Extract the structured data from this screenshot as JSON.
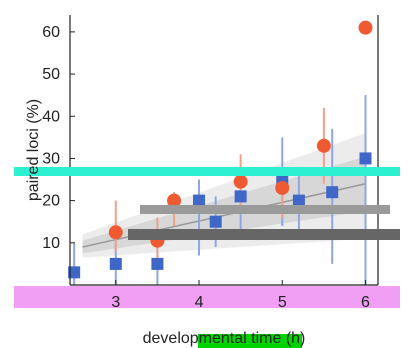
{
  "chart_data": {
    "type": "scatter",
    "title": "",
    "xlabel": "developmental time (h)",
    "ylabel": "paired loci (%)",
    "xlim": [
      2.45,
      6.15
    ],
    "ylim": [
      0,
      64
    ],
    "x_ticks": [
      "3",
      "4",
      "5",
      "6"
    ],
    "y_ticks": [
      "10",
      "20",
      "30",
      "40",
      "50",
      "60"
    ],
    "grid": false,
    "legend": "none",
    "colors": {
      "orange": "#f05a32",
      "blue": "#3f67c8",
      "blue_light": "#8fa6e6",
      "orange_light": "#f3a08a",
      "band_outer": "#ececec",
      "band_inner": "#d7d7d7",
      "fit_line": "#999999",
      "cyan_artifact": "#2cf0d0",
      "magenta_artifact": "#ef8ef3",
      "green_artifact": "#00d400"
    },
    "orange_series": [
      {
        "x": 3.0,
        "y": 12.5,
        "yerr_low": 8.0,
        "yerr_high": 20.0
      },
      {
        "x": 3.5,
        "y": 10.5,
        "yerr_low": 5.0,
        "yerr_high": 16.0
      },
      {
        "x": 3.7,
        "y": 20.0,
        "yerr_low": 14.0,
        "yerr_high": 22.0
      },
      {
        "x": 4.5,
        "y": 24.5,
        "yerr_low": 17.0,
        "yerr_high": 31.0
      },
      {
        "x": 5.0,
        "y": 23.0,
        "yerr_low": 16.0,
        "yerr_high": 28.0
      },
      {
        "x": 5.5,
        "y": 33.0,
        "yerr_low": 24.0,
        "yerr_high": 42.0
      },
      {
        "x": 6.0,
        "y": 61.0,
        "yerr_low": 61.0,
        "yerr_high": 61.0
      }
    ],
    "blue_series": [
      {
        "x": 2.5,
        "y": 3.0,
        "yerr_low": 0.0,
        "yerr_high": 10.0
      },
      {
        "x": 3.0,
        "y": 5.0,
        "yerr_low": 0.0,
        "yerr_high": 13.0
      },
      {
        "x": 3.5,
        "y": 5.0,
        "yerr_low": 0.0,
        "yerr_high": 11.0
      },
      {
        "x": 4.0,
        "y": 20.0,
        "yerr_low": 7.0,
        "yerr_high": 25.0
      },
      {
        "x": 4.2,
        "y": 15.0,
        "yerr_low": 9.0,
        "yerr_high": 21.0
      },
      {
        "x": 4.5,
        "y": 21.0,
        "yerr_low": 13.0,
        "yerr_high": 28.0
      },
      {
        "x": 5.0,
        "y": 25.0,
        "yerr_low": 14.0,
        "yerr_high": 35.0
      },
      {
        "x": 5.2,
        "y": 20.0,
        "yerr_low": 12.0,
        "yerr_high": 28.0
      },
      {
        "x": 5.6,
        "y": 22.0,
        "yerr_low": 5.0,
        "yerr_high": 37.0
      },
      {
        "x": 6.0,
        "y": 30.0,
        "yerr_low": 0.0,
        "yerr_high": 45.0
      }
    ],
    "fit_band": {
      "x": [
        2.6,
        6.0
      ],
      "center": [
        9.0,
        24.0
      ],
      "inner_low": [
        7.5,
        17.5
      ],
      "inner_high": [
        10.5,
        30.5
      ],
      "outer_low": [
        6.5,
        11.0
      ],
      "outer_high": [
        12.0,
        36.0
      ]
    }
  }
}
